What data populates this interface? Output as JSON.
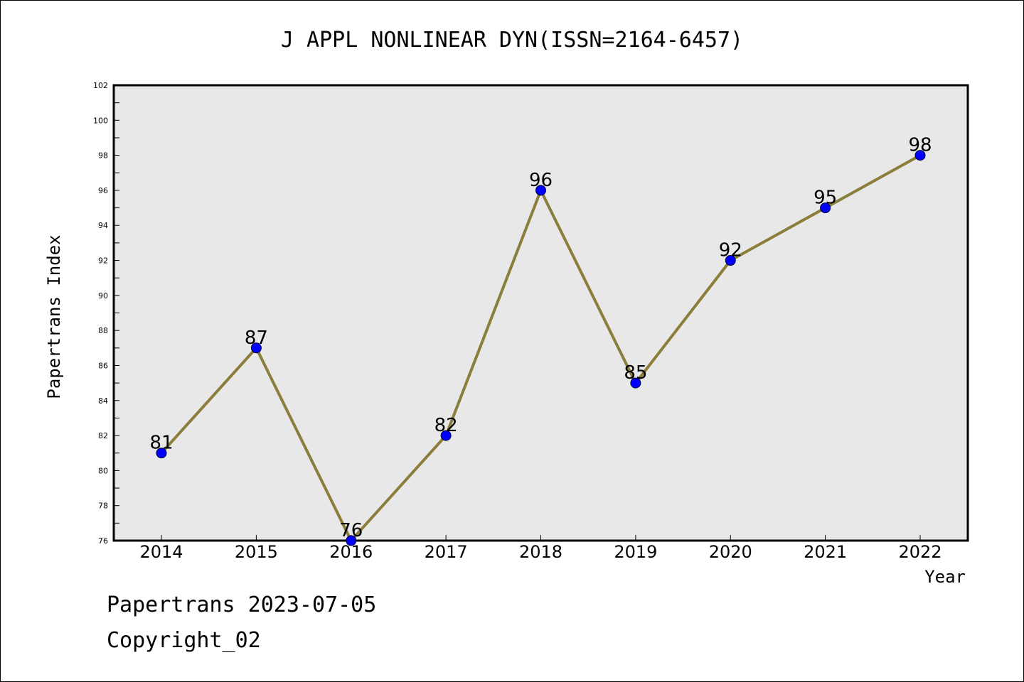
{
  "chart_data": {
    "type": "line",
    "title": "J APPL NONLINEAR DYN(ISSN=2164-6457)",
    "xlabel": "Year",
    "ylabel": "Papertrans Index",
    "categories": [
      "2014",
      "2015",
      "2016",
      "2017",
      "2018",
      "2019",
      "2020",
      "2021",
      "2022"
    ],
    "series": [
      {
        "values": [
          81,
          87,
          76,
          82,
          96,
          85,
          92,
          95,
          98
        ],
        "line_color": "#8b7d3a",
        "marker_color": "#0000ff"
      }
    ],
    "ylim": [
      76,
      102
    ],
    "yticks": [
      76,
      78,
      80,
      82,
      84,
      86,
      88,
      90,
      92,
      94,
      96,
      98,
      100,
      102
    ],
    "data_labels": true,
    "grid": false,
    "plot_background": "#e8e8e8"
  },
  "footer": {
    "date_line": "Papertrans 2023-07-05",
    "copyright_line": "Copyright_02"
  }
}
